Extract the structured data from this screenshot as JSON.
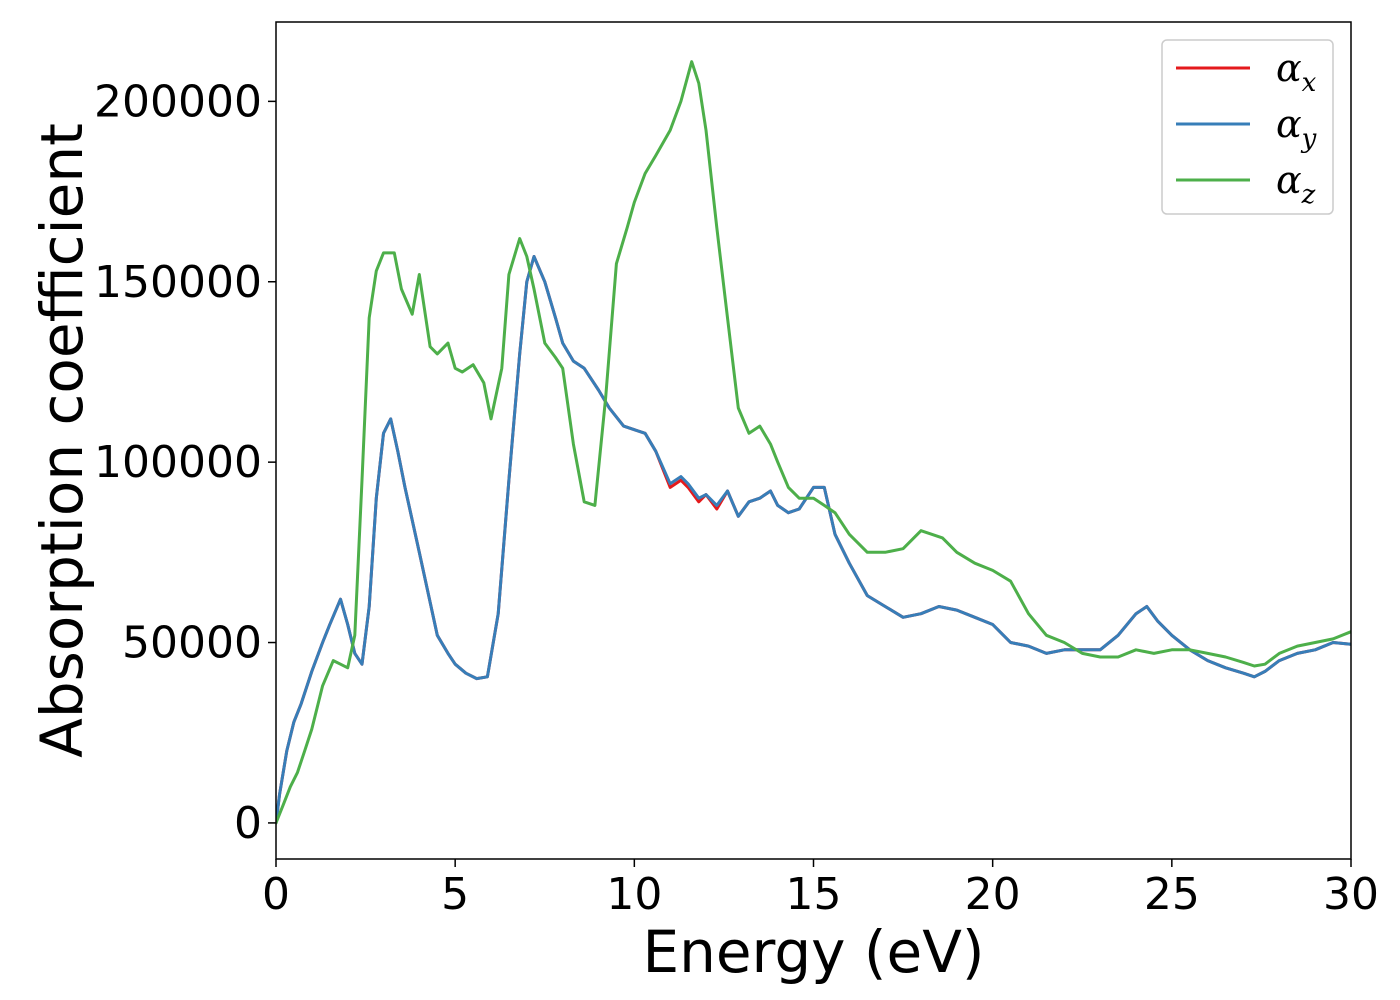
{
  "chart_data": {
    "type": "line",
    "xlabel": "Energy (eV)",
    "ylabel": "Absorption coefficient",
    "xlim": [
      0,
      30
    ],
    "ylim": [
      -10000,
      222000
    ],
    "xticks": [
      0,
      5,
      10,
      15,
      20,
      25,
      30
    ],
    "yticks": [
      0,
      50000,
      100000,
      150000,
      200000
    ],
    "xtick_labels": [
      "0",
      "5",
      "10",
      "15",
      "20",
      "25",
      "30"
    ],
    "ytick_labels": [
      "0",
      "50000",
      "100000",
      "150000",
      "200000"
    ],
    "grid": false,
    "legend_position": "top-right",
    "series": [
      {
        "name": "α_x",
        "label_base": "α",
        "label_sub": "x",
        "color": "#e41a1c",
        "x": [
          0,
          0.1,
          0.3,
          0.5,
          0.7,
          1.0,
          1.3,
          1.5,
          1.8,
          2.0,
          2.2,
          2.4,
          2.6,
          2.8,
          3.0,
          3.2,
          3.4,
          3.6,
          4.0,
          4.5,
          4.8,
          5.0,
          5.3,
          5.6,
          5.9,
          6.2,
          6.5,
          6.8,
          7.0,
          7.2,
          7.5,
          7.8,
          8.0,
          8.3,
          8.6,
          9.0,
          9.3,
          9.7,
          10.0,
          10.3,
          10.6,
          11.0,
          11.3,
          11.5,
          11.8,
          12.0,
          12.3,
          12.6,
          12.9,
          13.2,
          13.5,
          13.8,
          14.0,
          14.3,
          14.6,
          15.0,
          15.3,
          15.6,
          16.0,
          16.5,
          17.0,
          17.5,
          18.0,
          18.5,
          19.0,
          19.5,
          20.0,
          20.5,
          21.0,
          21.5,
          22.0,
          22.5,
          23.0,
          23.5,
          24.0,
          24.3,
          24.6,
          25.0,
          25.5,
          26.0,
          26.5,
          27.0,
          27.3,
          27.6,
          28.0,
          28.5,
          29.0,
          29.5,
          30.0
        ],
        "y": [
          0,
          8000,
          20000,
          28000,
          33000,
          42000,
          50000,
          55000,
          62000,
          55000,
          47000,
          44000,
          60000,
          90000,
          108000,
          112000,
          103000,
          93000,
          75000,
          52000,
          47000,
          44000,
          41500,
          40000,
          40500,
          58000,
          95000,
          130000,
          150000,
          157000,
          150000,
          140000,
          133000,
          128000,
          126000,
          120000,
          115000,
          110000,
          109000,
          108000,
          103000,
          93000,
          95000,
          93000,
          89000,
          91000,
          87000,
          92000,
          85000,
          89000,
          90000,
          92000,
          88000,
          86000,
          87000,
          93000,
          93000,
          80000,
          72000,
          63000,
          60000,
          57000,
          58000,
          60000,
          59000,
          57000,
          55000,
          50000,
          49000,
          47000,
          48000,
          48000,
          48000,
          52000,
          58000,
          60000,
          56000,
          52000,
          48000,
          45000,
          43000,
          41500,
          40500,
          42000,
          45000,
          47000,
          48000,
          50000,
          49500
        ]
      },
      {
        "name": "α_y",
        "label_base": "α",
        "label_sub": "y",
        "color": "#377eb8",
        "x": [
          0,
          0.1,
          0.3,
          0.5,
          0.7,
          1.0,
          1.3,
          1.5,
          1.8,
          2.0,
          2.2,
          2.4,
          2.6,
          2.8,
          3.0,
          3.2,
          3.4,
          3.6,
          4.0,
          4.5,
          4.8,
          5.0,
          5.3,
          5.6,
          5.9,
          6.2,
          6.5,
          6.8,
          7.0,
          7.2,
          7.5,
          7.8,
          8.0,
          8.3,
          8.6,
          9.0,
          9.3,
          9.7,
          10.0,
          10.3,
          10.6,
          11.0,
          11.3,
          11.5,
          11.8,
          12.0,
          12.3,
          12.6,
          12.9,
          13.2,
          13.5,
          13.8,
          14.0,
          14.3,
          14.6,
          15.0,
          15.3,
          15.6,
          16.0,
          16.5,
          17.0,
          17.5,
          18.0,
          18.5,
          19.0,
          19.5,
          20.0,
          20.5,
          21.0,
          21.5,
          22.0,
          22.5,
          23.0,
          23.5,
          24.0,
          24.3,
          24.6,
          25.0,
          25.5,
          26.0,
          26.5,
          27.0,
          27.3,
          27.6,
          28.0,
          28.5,
          29.0,
          29.5,
          30.0
        ],
        "y": [
          0,
          8000,
          20000,
          28000,
          33000,
          42000,
          50000,
          55000,
          62000,
          55000,
          47000,
          44000,
          60000,
          90000,
          108000,
          112000,
          103000,
          93000,
          75000,
          52000,
          47000,
          44000,
          41500,
          40000,
          40500,
          58000,
          95000,
          130000,
          150000,
          157000,
          150000,
          140000,
          133000,
          128000,
          126000,
          120000,
          115000,
          110000,
          109000,
          108000,
          103000,
          94000,
          96000,
          94000,
          90000,
          91000,
          88000,
          92000,
          85000,
          89000,
          90000,
          92000,
          88000,
          86000,
          87000,
          93000,
          93000,
          80000,
          72000,
          63000,
          60000,
          57000,
          58000,
          60000,
          59000,
          57000,
          55000,
          50000,
          49000,
          47000,
          48000,
          48000,
          48000,
          52000,
          58000,
          60000,
          56000,
          52000,
          48000,
          45000,
          43000,
          41500,
          40500,
          42000,
          45000,
          47000,
          48000,
          50000,
          49500
        ]
      },
      {
        "name": "α_z",
        "label_base": "α",
        "label_sub": "z",
        "color": "#4daf4a",
        "x": [
          0,
          0.2,
          0.4,
          0.6,
          0.8,
          1.0,
          1.3,
          1.6,
          1.8,
          2.0,
          2.2,
          2.4,
          2.6,
          2.8,
          3.0,
          3.3,
          3.5,
          3.8,
          4.0,
          4.3,
          4.5,
          4.8,
          5.0,
          5.2,
          5.5,
          5.8,
          6.0,
          6.3,
          6.5,
          6.8,
          7.0,
          7.2,
          7.5,
          7.8,
          8.0,
          8.3,
          8.6,
          8.9,
          9.2,
          9.5,
          9.8,
          10.0,
          10.3,
          10.6,
          11.0,
          11.3,
          11.6,
          11.8,
          12.0,
          12.3,
          12.6,
          12.9,
          13.2,
          13.5,
          13.8,
          14.0,
          14.3,
          14.6,
          15.0,
          15.3,
          15.6,
          16.0,
          16.5,
          17.0,
          17.5,
          18.0,
          18.3,
          18.6,
          19.0,
          19.5,
          20.0,
          20.5,
          21.0,
          21.5,
          22.0,
          22.5,
          23.0,
          23.5,
          24.0,
          24.5,
          25.0,
          25.5,
          26.0,
          26.5,
          27.0,
          27.3,
          27.6,
          28.0,
          28.5,
          29.0,
          29.5,
          30.0
        ],
        "y": [
          0,
          5000,
          10000,
          14000,
          20000,
          26000,
          38000,
          45000,
          44000,
          43000,
          52000,
          95000,
          140000,
          153000,
          158000,
          158000,
          148000,
          141000,
          152000,
          132000,
          130000,
          133000,
          126000,
          125000,
          127000,
          122000,
          112000,
          126000,
          152000,
          162000,
          157000,
          148000,
          133000,
          129000,
          126000,
          105000,
          89000,
          88000,
          118000,
          155000,
          165000,
          172000,
          180000,
          185000,
          192000,
          200000,
          211000,
          205000,
          192000,
          165000,
          140000,
          115000,
          108000,
          110000,
          105000,
          100000,
          93000,
          90000,
          90000,
          88000,
          86000,
          80000,
          75000,
          75000,
          76000,
          81000,
          80000,
          79000,
          75000,
          72000,
          70000,
          67000,
          58000,
          52000,
          50000,
          47000,
          46000,
          46000,
          48000,
          47000,
          48000,
          48000,
          47000,
          46000,
          44500,
          43500,
          44000,
          47000,
          49000,
          50000,
          51000,
          53000
        ]
      }
    ]
  }
}
